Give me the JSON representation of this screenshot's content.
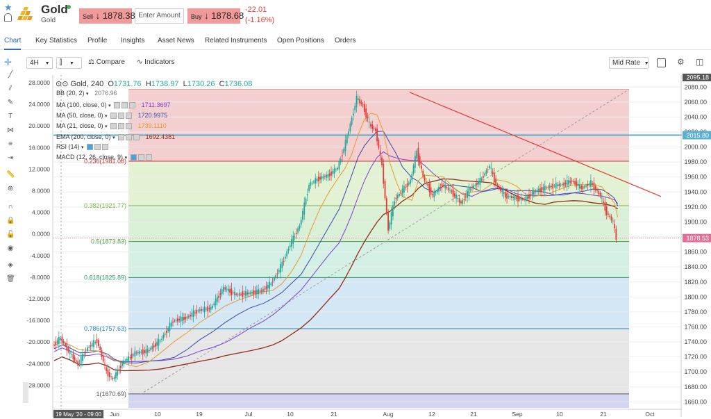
{
  "header": {
    "asset_name": "Gold",
    "asset_sub": "Gold",
    "sell_label": "Sell",
    "sell_price": "1878.38",
    "amount_placeholder": "Enter Amount",
    "buy_label": "Buy",
    "buy_price": "1878.68",
    "change_abs": "-22.01",
    "change_pct": "(-1.16%)"
  },
  "tabs": [
    {
      "label": "Chart",
      "active": true
    },
    {
      "label": "Key Statistics"
    },
    {
      "label": "Profile"
    },
    {
      "label": "Insights"
    },
    {
      "label": "Asset News"
    },
    {
      "label": "Related Instruments"
    },
    {
      "label": "Open Positions"
    },
    {
      "label": "Orders"
    }
  ],
  "toolbar": {
    "timeframe": "4H",
    "compare_label": "Compare",
    "indicators_label": "Indicators",
    "rate_label": "Mid Rate"
  },
  "legend": {
    "symbol": "Gold, 240",
    "open_label": "O",
    "open": "1731.76",
    "high_label": "H",
    "high": "1738.97",
    "low_label": "L",
    "low": "1730.26",
    "close_label": "C",
    "close": "1736.08",
    "indicators": [
      {
        "name": "BB (20, 2)",
        "value": "2076.96",
        "color": "#777777"
      },
      {
        "name": "MA (100, close, 0)",
        "value": "1711.3697",
        "color": "#7b3fd0"
      },
      {
        "name": "MA (50, close, 0)",
        "value": "1720.9975",
        "color": "#3949ab"
      },
      {
        "name": "MA (21, close, 0)",
        "value": "1739.1110",
        "color": "#e69a2a"
      },
      {
        "name": "EMA (200, close, 0)",
        "value": "1692.4381",
        "color": "#8b2d1c"
      },
      {
        "name": "RSI (14)",
        "value": "",
        "color": "#333333"
      },
      {
        "name": "MACD (12, 26, close, 9)",
        "value": "",
        "color": "#333333"
      }
    ]
  },
  "chart_data": {
    "type": "candlestick",
    "symbol": "Gold",
    "timeframe": "4H",
    "price_axis_right": [
      "2080.00",
      "2060.00",
      "2040.00",
      "2020.00",
      "2000.00",
      "1980.00",
      "1960.00",
      "1940.00",
      "1920.00",
      "1900.00",
      "1880.00",
      "1860.00",
      "1840.00",
      "1820.00",
      "1800.00",
      "1780.00",
      "1760.00",
      "1740.00",
      "1720.00",
      "1700.00",
      "1680.00",
      "1660.00"
    ],
    "price_axis_left": [
      "28.0000",
      "24.0000",
      "20.0000",
      "16.0000",
      "12.0000",
      "8.0000",
      "4.0000",
      "0.0000",
      "-4.0000",
      "-8.0000",
      "-12.0000",
      "-16.0000",
      "-20.0000",
      "-24.0000",
      "-28.0000"
    ],
    "ylim": [
      1652,
      2096
    ],
    "top_marker": "2095.18",
    "current_price": "1878.53",
    "level_2015": "2015.80",
    "x_ticks": [
      "Jun",
      "10",
      "19",
      "Jul",
      "10",
      "21",
      "Aug",
      "12",
      "21",
      "Sep",
      "10",
      "21",
      "Oct"
    ],
    "x_cursor_label": "19 May '20 - 09:00",
    "fib_levels": [
      {
        "label": "0.236(1981.08)",
        "price": 1981.08,
        "color": "#d32f2f"
      },
      {
        "label": "0.382(1921.77)",
        "price": 1921.77,
        "color": "#7cb342"
      },
      {
        "label": "0.5(1873.83)",
        "price": 1873.83,
        "color": "#43a047"
      },
      {
        "label": "0.618(1825.89)",
        "price": 1825.89,
        "color": "#2e9b6a"
      },
      {
        "label": "0.786(1757.63)",
        "price": 1757.63,
        "color": "#1e88c8"
      },
      {
        "label": "1(1670.69)",
        "price": 1670.69,
        "color": "#555555"
      }
    ],
    "fib_top_price": 2076.96,
    "price_path": [
      [
        0,
        1735
      ],
      [
        5,
        1745
      ],
      [
        10,
        1728
      ],
      [
        16,
        1710
      ],
      [
        22,
        1732
      ],
      [
        28,
        1742
      ],
      [
        34,
        1700
      ],
      [
        38,
        1690
      ],
      [
        44,
        1712
      ],
      [
        52,
        1725
      ],
      [
        60,
        1728
      ],
      [
        68,
        1742
      ],
      [
        76,
        1768
      ],
      [
        84,
        1772
      ],
      [
        92,
        1782
      ],
      [
        100,
        1785
      ],
      [
        108,
        1812
      ],
      [
        116,
        1803
      ],
      [
        124,
        1805
      ],
      [
        132,
        1808
      ],
      [
        138,
        1818
      ],
      [
        144,
        1840
      ],
      [
        150,
        1870
      ],
      [
        156,
        1895
      ],
      [
        162,
        1950
      ],
      [
        168,
        1958
      ],
      [
        174,
        1962
      ],
      [
        180,
        1972
      ],
      [
        184,
        1998
      ],
      [
        188,
        2030
      ],
      [
        192,
        2065
      ],
      [
        196,
        2055
      ],
      [
        200,
        2030
      ],
      [
        204,
        2022
      ],
      [
        208,
        1975
      ],
      [
        212,
        1890
      ],
      [
        216,
        1930
      ],
      [
        220,
        1940
      ],
      [
        226,
        1955
      ],
      [
        230,
        1995
      ],
      [
        234,
        1960
      ],
      [
        240,
        1935
      ],
      [
        246,
        1950
      ],
      [
        252,
        1940
      ],
      [
        258,
        1925
      ],
      [
        264,
        1945
      ],
      [
        270,
        1955
      ],
      [
        276,
        1975
      ],
      [
        280,
        1950
      ],
      [
        286,
        1935
      ],
      [
        292,
        1932
      ],
      [
        298,
        1930
      ],
      [
        304,
        1940
      ],
      [
        310,
        1945
      ],
      [
        316,
        1948
      ],
      [
        322,
        1950
      ],
      [
        328,
        1955
      ],
      [
        334,
        1945
      ],
      [
        340,
        1952
      ],
      [
        346,
        1935
      ],
      [
        350,
        1912
      ],
      [
        354,
        1900
      ],
      [
        356,
        1878
      ]
    ]
  }
}
